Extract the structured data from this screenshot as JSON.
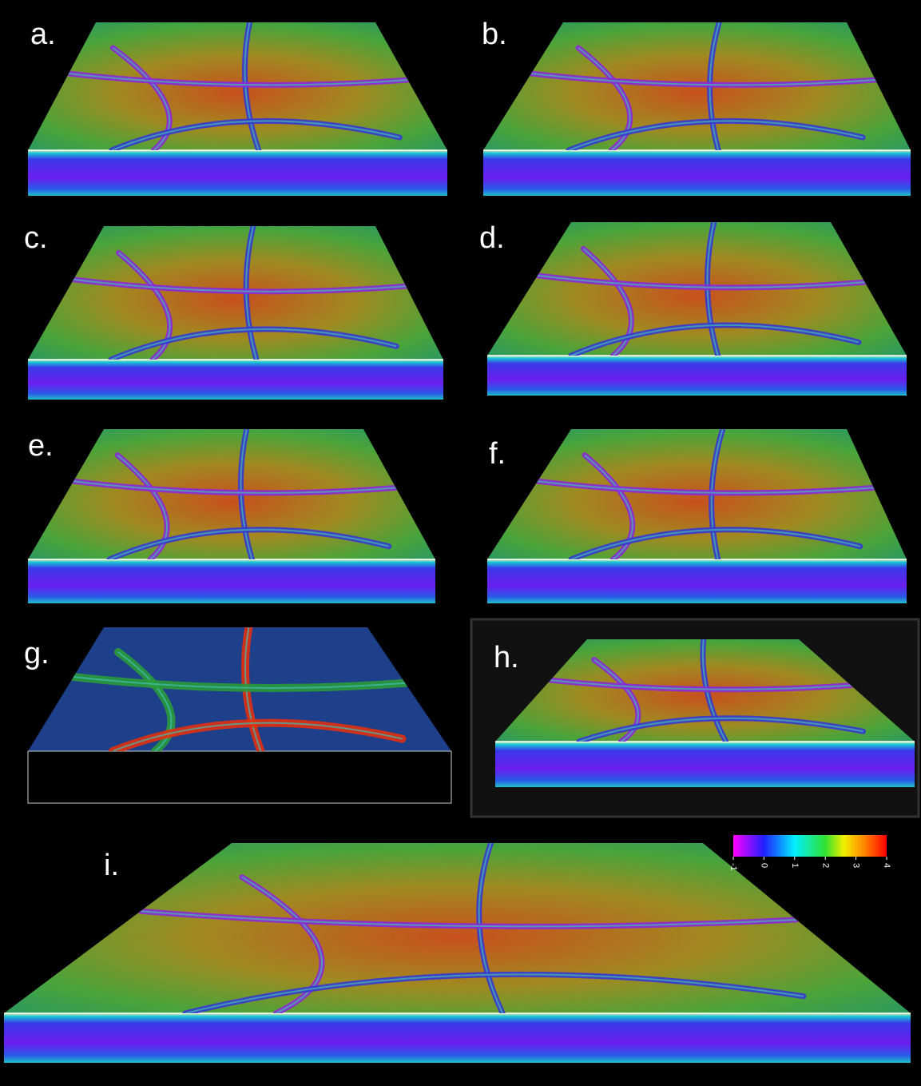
{
  "panels": [
    {
      "label": "a."
    },
    {
      "label": "b."
    },
    {
      "label": "c."
    },
    {
      "label": "d."
    },
    {
      "label": "e."
    },
    {
      "label": "f."
    },
    {
      "label": "g."
    },
    {
      "label": "h."
    },
    {
      "label": "i."
    }
  ],
  "colorbar": {
    "range": [
      -1,
      4
    ],
    "ticks": [
      -1,
      0,
      1,
      2,
      3,
      4
    ]
  }
}
